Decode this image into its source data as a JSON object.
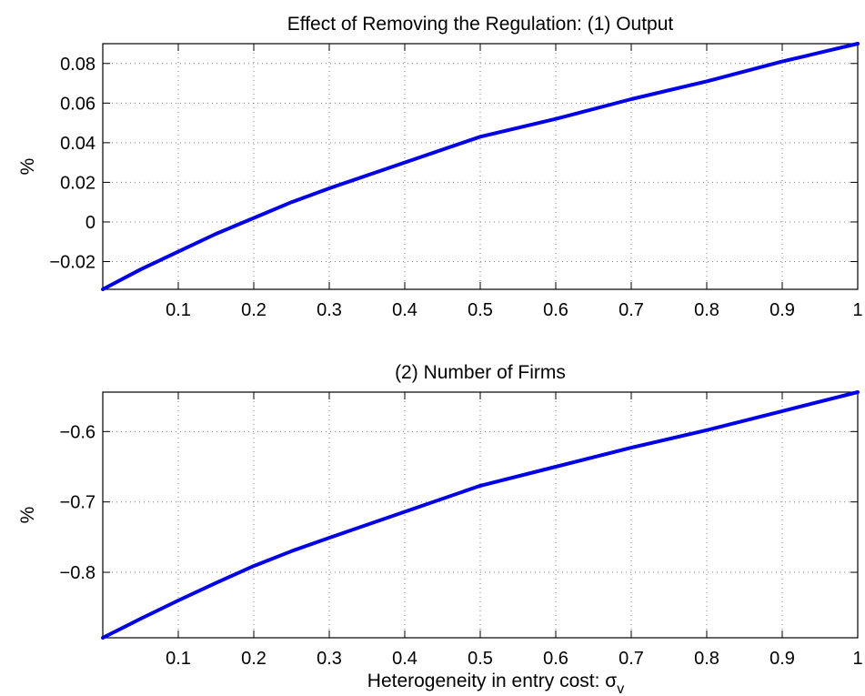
{
  "figure": {
    "xlabel_text": "Heterogeneity in entry cost: ",
    "xlabel_symbol": "σ",
    "xlabel_subscript": "v"
  },
  "chart_data": [
    {
      "type": "line",
      "title": "Effect of Removing the Regulation: (1) Output",
      "ylabel": "%",
      "xlim": [
        0,
        1
      ],
      "ylim": [
        -0.034,
        0.09
      ],
      "grid": true,
      "xticks": [
        0.1,
        0.2,
        0.3,
        0.4,
        0.5,
        0.6,
        0.7,
        0.8,
        0.9,
        1
      ],
      "xtick_labels": [
        "0.1",
        "0.2",
        "0.3",
        "0.4",
        "0.5",
        "0.6",
        "0.7",
        "0.8",
        "0.9",
        "1"
      ],
      "yticks": [
        -0.02,
        0,
        0.02,
        0.04,
        0.06,
        0.08
      ],
      "ytick_labels": [
        "−0.02",
        "0",
        "0.02",
        "0.04",
        "0.06",
        "0.08"
      ],
      "series": [
        {
          "color": "#0000e6",
          "x": [
            0,
            0.05,
            0.1,
            0.15,
            0.2,
            0.25,
            0.3,
            0.4,
            0.5,
            0.6,
            0.7,
            0.8,
            0.9,
            1.0
          ],
          "y": [
            -0.034,
            -0.024,
            -0.015,
            -0.006,
            0.002,
            0.01,
            0.017,
            0.03,
            0.043,
            0.052,
            0.062,
            0.071,
            0.081,
            0.09
          ]
        }
      ]
    },
    {
      "type": "line",
      "title": "(2) Number of Firms",
      "ylabel": "%",
      "xlim": [
        0,
        1
      ],
      "ylim": [
        -0.893,
        -0.544
      ],
      "grid": true,
      "xticks": [
        0.1,
        0.2,
        0.3,
        0.4,
        0.5,
        0.6,
        0.7,
        0.8,
        0.9,
        1
      ],
      "xtick_labels": [
        "0.1",
        "0.2",
        "0.3",
        "0.4",
        "0.5",
        "0.6",
        "0.7",
        "0.8",
        "0.9",
        "1"
      ],
      "yticks": [
        -0.8,
        -0.7,
        -0.6
      ],
      "ytick_labels": [
        "−0.8",
        "−0.7",
        "−0.6"
      ],
      "series": [
        {
          "color": "#0000e6",
          "x": [
            0,
            0.05,
            0.1,
            0.15,
            0.2,
            0.25,
            0.3,
            0.4,
            0.5,
            0.6,
            0.7,
            0.8,
            0.9,
            1.0
          ],
          "y": [
            -0.893,
            -0.866,
            -0.84,
            -0.815,
            -0.791,
            -0.77,
            -0.751,
            -0.714,
            -0.677,
            -0.65,
            -0.623,
            -0.598,
            -0.571,
            -0.544
          ]
        }
      ]
    }
  ]
}
